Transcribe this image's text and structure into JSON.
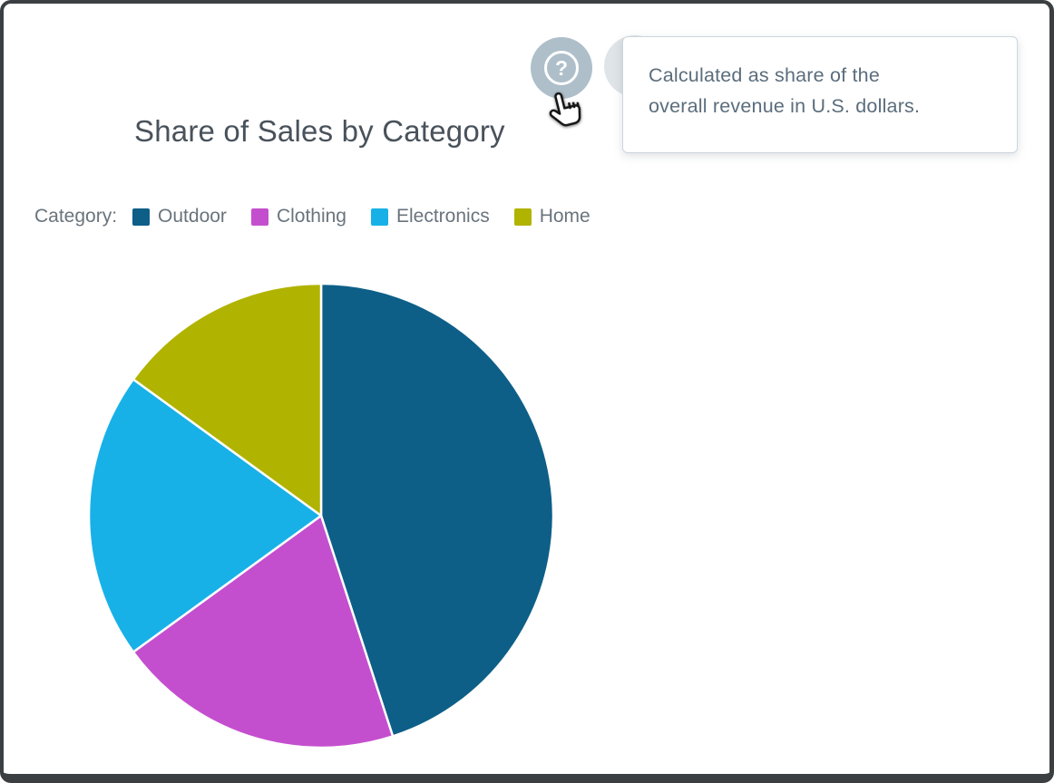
{
  "window": {
    "frame_color": "#3b3f42",
    "background": "#ffffff"
  },
  "header": {
    "title": "Share of Sales by Category",
    "title_color": "#49525b",
    "help_icon_glyph": "?",
    "help_button_bg": "#aebfca",
    "ghost_circle_bg": "#dfe4e8",
    "tooltip": {
      "lines": [
        "Calculated as share of the",
        "overall revenue in U.S. dollars."
      ],
      "text_color": "#5b6d7c"
    }
  },
  "legend": {
    "label": "Category:",
    "text_color": "#6a747d",
    "items": [
      {
        "label": "Outdoor",
        "color": "#0d5f87"
      },
      {
        "label": "Clothing",
        "color": "#c44fce"
      },
      {
        "label": "Electronics",
        "color": "#18b1e7"
      },
      {
        "label": "Home",
        "color": "#b1b301"
      }
    ]
  },
  "chart_data": {
    "type": "pie",
    "title": "Share of Sales by Category",
    "categories": [
      "Outdoor",
      "Clothing",
      "Electronics",
      "Home"
    ],
    "values": [
      45,
      20,
      20,
      15
    ],
    "value_unit": "percent share of overall revenue (USD)",
    "colors": [
      "#0d5f87",
      "#c44fce",
      "#18b1e7",
      "#b1b301"
    ],
    "start_angle_deg": 0,
    "direction": "clockwise",
    "slice_separator_color": "#ffffff",
    "legend_position": "top-left",
    "labels_shown_on_slices": false
  }
}
